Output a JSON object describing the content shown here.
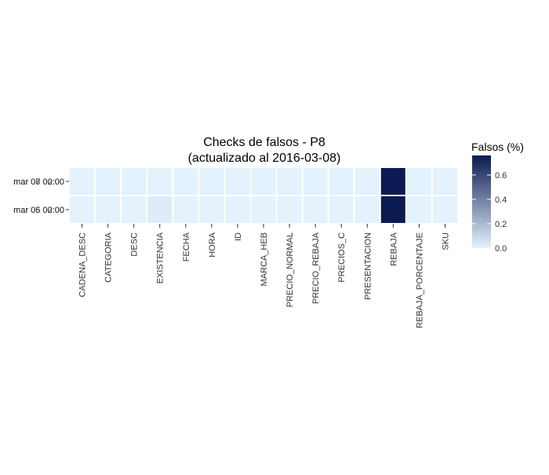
{
  "chart_data": {
    "type": "heatmap",
    "title": "Checks de falsos - P8",
    "subtitle": "(actualizado al 2016-03-08)",
    "xlabel": "",
    "ylabel": "",
    "x_categories": [
      "CADENA_DESC",
      "CATEGORIA",
      "DESC",
      "EXISTENCIA",
      "FECHA",
      "HORA",
      "ID",
      "MARCA_HEB",
      "PRECIO_NORMAL",
      "PRECIO_REBAJA",
      "PRECIOS_C",
      "PRESENTACION",
      "REBAJA",
      "REBAJA_PORCENTAJE",
      "SKU"
    ],
    "y_categories": [
      "mar 07 02:00",
      "mar 06 02:00"
    ],
    "y_label_overlay": [
      "mar 08 00:00",
      "mar 05 00:00"
    ],
    "values": [
      [
        0.0,
        0.0,
        0.0,
        0.0,
        0.0,
        0.0,
        0.0,
        0.0,
        0.0,
        0.0,
        0.0,
        0.0,
        0.76,
        0.0,
        0.0
      ],
      [
        0.0,
        0.0,
        0.0,
        0.02,
        0.0,
        0.0,
        0.0,
        0.0,
        0.0,
        0.0,
        0.0,
        0.0,
        0.76,
        0.0,
        0.0
      ]
    ],
    "legend": {
      "title": "Falsos (%)",
      "range": [
        0.0,
        0.76
      ],
      "ticks": [
        0.0,
        0.2,
        0.4,
        0.6
      ],
      "tick_labels": [
        "0.0",
        "0.2",
        "0.4",
        "0.6"
      ],
      "low_color": "#e3f2fd",
      "high_color": "#0b1a52",
      "position": "right"
    },
    "grid": false
  }
}
